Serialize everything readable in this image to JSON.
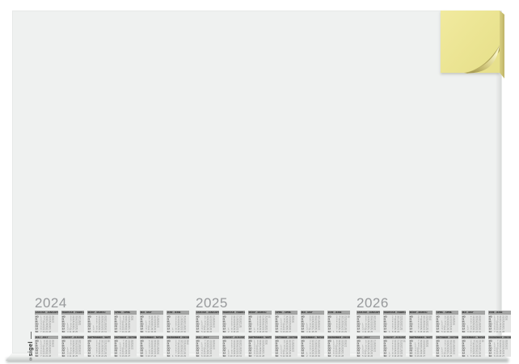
{
  "scene": {
    "background_color": "#ffffff",
    "pad_surface_color": "#eff1f0",
    "note_block_color": "#ebe492",
    "note_edge_color": "#bfb468",
    "month_header_color": "#a4a5a4",
    "month_body_color": "#e4e5e4",
    "year_label_color": "#97999b"
  },
  "brand": {
    "logo_text": "sigel",
    "registered": "®"
  },
  "calendar": {
    "weekday_labels": [
      "MO",
      "DI",
      "MI",
      "DO",
      "FR",
      "SA",
      "SO"
    ],
    "years": [
      {
        "label": "2024",
        "months": [
          {
            "header": "JANUAR · JANUARY",
            "days": 31,
            "start": 0
          },
          {
            "header": "FEBRUAR · FEBRUARY",
            "days": 29,
            "start": 3
          },
          {
            "header": "MÄRZ · MARCH",
            "days": 31,
            "start": 4
          },
          {
            "header": "APRIL · APRIL",
            "days": 30,
            "start": 0
          },
          {
            "header": "MAI · MAY",
            "days": 31,
            "start": 2
          },
          {
            "header": "JUNI · JUNE",
            "days": 30,
            "start": 5
          },
          {
            "header": "JULI · JULY",
            "days": 31,
            "start": 0
          },
          {
            "header": "AUGUST · AUGUST",
            "days": 31,
            "start": 3
          },
          {
            "header": "SEPTEMBER · SEPTEMBER",
            "days": 30,
            "start": 6
          },
          {
            "header": "OKTOBER · OCTOBER",
            "days": 31,
            "start": 1
          },
          {
            "header": "NOVEMBER · NOVEMBER",
            "days": 30,
            "start": 4
          },
          {
            "header": "DEZEMBER · DECEMBER",
            "days": 31,
            "start": 6
          }
        ]
      },
      {
        "label": "2025",
        "months": [
          {
            "header": "JANUAR · JANUARY",
            "days": 31,
            "start": 2
          },
          {
            "header": "FEBRUAR · FEBRUARY",
            "days": 28,
            "start": 5
          },
          {
            "header": "MÄRZ · MARCH",
            "days": 31,
            "start": 5
          },
          {
            "header": "APRIL · APRIL",
            "days": 30,
            "start": 1
          },
          {
            "header": "MAI · MAY",
            "days": 31,
            "start": 3
          },
          {
            "header": "JUNI · JUNE",
            "days": 30,
            "start": 6
          },
          {
            "header": "JULI · JULY",
            "days": 31,
            "start": 1
          },
          {
            "header": "AUGUST · AUGUST",
            "days": 31,
            "start": 4
          },
          {
            "header": "SEPTEMBER · SEPTEMBER",
            "days": 30,
            "start": 0
          },
          {
            "header": "OKTOBER · OCTOBER",
            "days": 31,
            "start": 2
          },
          {
            "header": "NOVEMBER · NOVEMBER",
            "days": 30,
            "start": 5
          },
          {
            "header": "DEZEMBER · DECEMBER",
            "days": 31,
            "start": 0
          }
        ]
      },
      {
        "label": "2026",
        "months": [
          {
            "header": "JANUAR · JANUARY",
            "days": 31,
            "start": 3
          },
          {
            "header": "FEBRUAR · FEBRUARY",
            "days": 28,
            "start": 6
          },
          {
            "header": "MÄRZ · MARCH",
            "days": 31,
            "start": 6
          },
          {
            "header": "APRIL · APRIL",
            "days": 30,
            "start": 2
          },
          {
            "header": "MAI · MAY",
            "days": 31,
            "start": 4
          },
          {
            "header": "JUNI · JUNE",
            "days": 30,
            "start": 0
          },
          {
            "header": "JULI · JULY",
            "days": 31,
            "start": 2
          },
          {
            "header": "AUGUST · AUGUST",
            "days": 31,
            "start": 5
          },
          {
            "header": "SEPTEMBER · SEPTEMBER",
            "days": 30,
            "start": 1
          },
          {
            "header": "OKTOBER · OCTOBER",
            "days": 31,
            "start": 3
          },
          {
            "header": "NOVEMBER · NOVEMBER",
            "days": 30,
            "start": 6
          },
          {
            "header": "DEZEMBER · DECEMBER",
            "days": 31,
            "start": 1
          }
        ]
      }
    ]
  }
}
